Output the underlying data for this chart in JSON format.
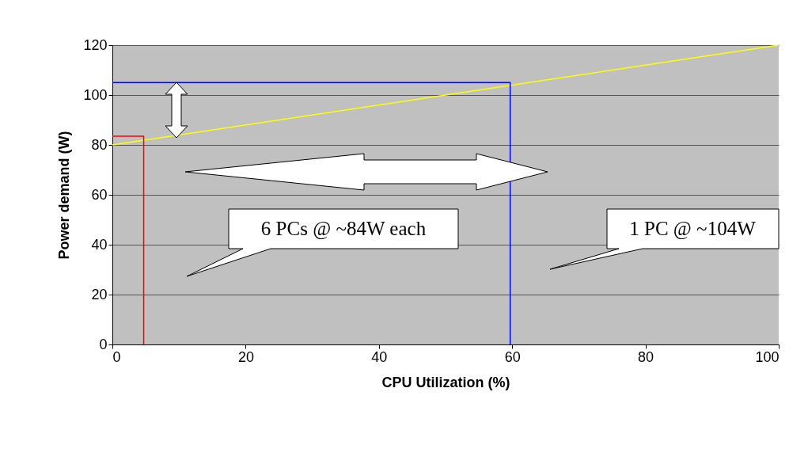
{
  "chart_data": {
    "type": "line",
    "xlabel": "CPU Utilization (%)",
    "ylabel": "Power demand (W)",
    "xlim": [
      0,
      100
    ],
    "ylim": [
      0,
      120
    ],
    "xticks": [
      0,
      20,
      40,
      60,
      80,
      100
    ],
    "yticks": [
      0,
      20,
      40,
      60,
      80,
      100,
      120
    ],
    "grid": "y",
    "legend": false,
    "marker": "none",
    "line_style": "solid",
    "series": [
      {
        "color": "#ffff00",
        "x": [
          0,
          100
        ],
        "values": [
          80,
          120
        ]
      },
      {
        "color": "#ff0000",
        "x": [
          0,
          4.7,
          4.7
        ],
        "values": [
          83.5,
          83.5,
          0
        ]
      },
      {
        "color": "#0000ff",
        "x": [
          0,
          59.7,
          59.7
        ],
        "values": [
          105,
          105,
          0
        ]
      }
    ],
    "annotations": [
      "6 PCs @ ~84W each",
      "1 PC @ ~104W"
    ]
  }
}
